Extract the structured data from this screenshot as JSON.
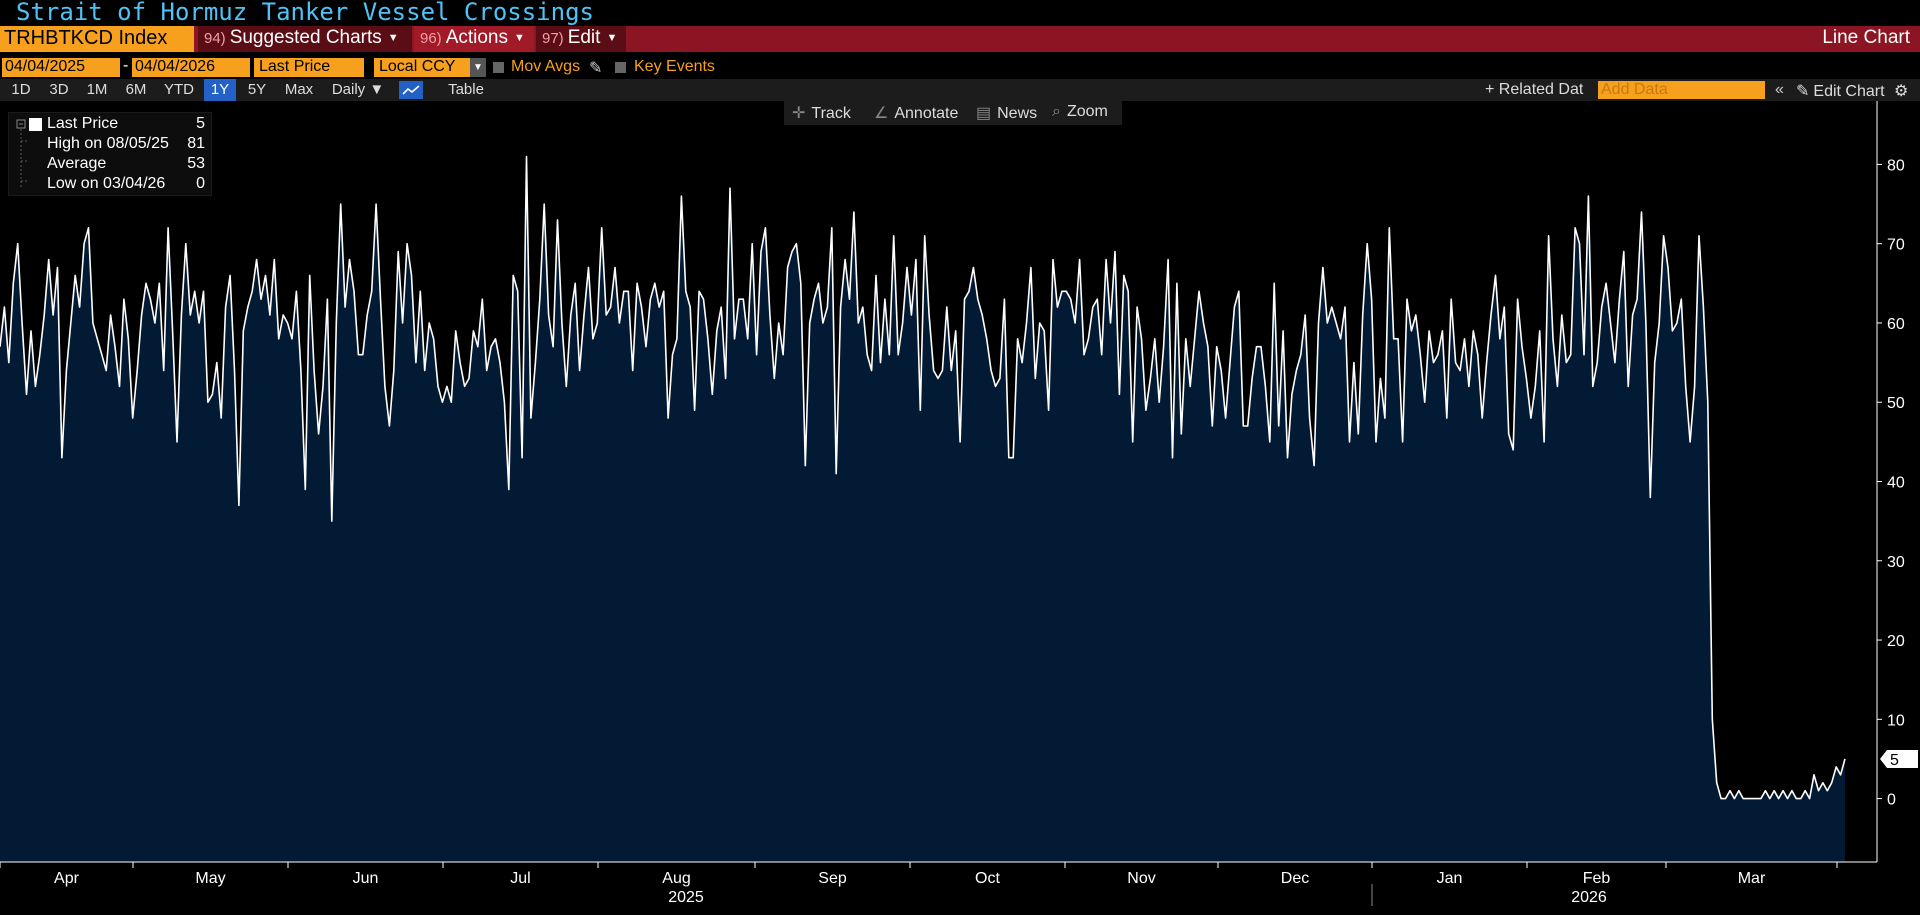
{
  "title": "Strait of Hormuz Tanker Vessel Crossings",
  "menu": {
    "ticker": "TRHBTKCD Index",
    "suggested": {
      "num": "94)",
      "label": "Suggested Charts"
    },
    "actions": {
      "num": "96)",
      "label": "Actions"
    },
    "edit": {
      "num": "97)",
      "label": "Edit"
    },
    "chart_type": "Line Chart"
  },
  "dates": {
    "start": "04/04/2025",
    "dash": "-",
    "end": "04/04/2026"
  },
  "field": "Last Price",
  "currency": "Local CCY",
  "mov_avgs": "Mov Avgs",
  "key_events": "Key Events",
  "ranges": [
    "1D",
    "3D",
    "1M",
    "6M",
    "YTD",
    "1Y",
    "5Y",
    "Max"
  ],
  "active_range": "1Y",
  "frequency": "Daily ▼",
  "table_label": "Table",
  "related_data": "+ Related Dat",
  "add_data_placeholder": "Add Data",
  "edit_chart": "Edit Chart",
  "tools": {
    "track": "Track",
    "annotate": "Annotate",
    "news": "News",
    "zoom": "Zoom"
  },
  "legend": {
    "last": {
      "label": "Last Price",
      "value": "5"
    },
    "high": {
      "label": "High on 08/05/25",
      "value": "81"
    },
    "average": {
      "label": "Average",
      "value": "53"
    },
    "low": {
      "label": "Low on 03/04/26",
      "value": "0"
    }
  },
  "colors": {
    "area": "#031a35",
    "line": "#ffffff",
    "accent": "#f6a01e",
    "menu": "#8b1522"
  },
  "chart_data": {
    "type": "area",
    "title": "Strait of Hormuz Tanker Vessel Crossings",
    "series": [
      {
        "name": "Last Price",
        "x_start": "2025-04-04",
        "x_end": "2026-04-04"
      }
    ],
    "values": [
      57,
      62,
      55,
      65,
      70,
      60,
      51,
      59,
      52,
      56,
      61,
      68,
      61,
      67,
      43,
      54,
      60,
      66,
      62,
      70,
      72,
      60,
      58,
      56,
      54,
      61,
      57,
      52,
      63,
      58,
      48,
      54,
      61,
      65,
      63,
      60,
      65,
      54,
      72,
      59,
      45,
      61,
      70,
      61,
      64,
      60,
      64,
      50,
      51,
      55,
      48,
      62,
      66,
      54,
      37,
      59,
      62,
      64,
      68,
      63,
      66,
      61,
      68,
      58,
      61,
      60,
      58,
      64,
      54,
      39,
      66,
      54,
      46,
      52,
      63,
      35,
      60,
      75,
      62,
      68,
      64,
      56,
      56,
      61,
      64,
      75,
      63,
      52,
      47,
      54,
      69,
      60,
      70,
      66,
      55,
      64,
      54,
      60,
      58,
      52,
      50,
      52,
      50,
      59,
      55,
      52,
      53,
      59,
      57,
      63,
      54,
      57,
      58,
      55,
      50,
      39,
      66,
      64,
      43,
      81,
      48,
      55,
      63,
      75,
      61,
      57,
      73,
      60,
      52,
      61,
      65,
      54,
      61,
      67,
      58,
      60,
      72,
      61,
      62,
      67,
      60,
      64,
      64,
      54,
      65,
      62,
      57,
      63,
      65,
      62,
      64,
      48,
      56,
      58,
      76,
      64,
      62,
      49,
      64,
      63,
      58,
      51,
      59,
      62,
      53,
      77,
      58,
      63,
      63,
      58,
      70,
      56,
      69,
      72,
      61,
      53,
      60,
      56,
      67,
      69,
      70,
      65,
      42,
      60,
      63,
      65,
      60,
      62,
      72,
      41,
      62,
      68,
      63,
      74,
      60,
      62,
      56,
      54,
      66,
      55,
      63,
      56,
      71,
      56,
      60,
      67,
      61,
      68,
      49,
      71,
      61,
      54,
      53,
      54,
      62,
      54,
      59,
      45,
      63,
      64,
      67,
      63,
      61,
      58,
      54,
      52,
      53,
      63,
      43,
      43,
      58,
      55,
      60,
      67,
      53,
      60,
      59,
      49,
      68,
      62,
      64,
      64,
      63,
      60,
      68,
      56,
      58,
      62,
      63,
      56,
      68,
      60,
      69,
      51,
      66,
      64,
      45,
      62,
      58,
      49,
      53,
      58,
      50,
      57,
      68,
      43,
      65,
      46,
      58,
      52,
      58,
      64,
      60,
      57,
      47,
      57,
      54,
      48,
      55,
      62,
      64,
      47,
      47,
      53,
      57,
      57,
      52,
      45,
      65,
      47,
      59,
      43,
      51,
      54,
      56,
      61,
      48,
      42,
      60,
      67,
      60,
      62,
      60,
      58,
      62,
      45,
      55,
      46,
      61,
      70,
      63,
      45,
      53,
      48,
      72,
      58,
      58,
      45,
      63,
      59,
      61,
      56,
      50,
      59,
      55,
      56,
      59,
      48,
      63,
      55,
      54,
      58,
      52,
      59,
      56,
      48,
      55,
      61,
      66,
      58,
      62,
      46,
      44,
      63,
      57,
      53,
      48,
      52,
      59,
      45,
      71,
      58,
      52,
      61,
      55,
      56,
      72,
      70,
      56,
      76,
      52,
      55,
      62,
      65,
      60,
      55,
      63,
      69,
      52,
      61,
      63,
      74,
      60,
      38,
      55,
      60,
      71,
      67,
      59,
      60,
      63,
      52,
      45,
      52,
      71,
      62,
      50,
      10,
      2,
      0,
      0,
      1,
      0,
      1,
      0,
      0,
      0,
      0,
      0,
      1,
      0,
      1,
      0,
      1,
      0,
      1,
      0,
      0,
      1,
      0,
      3,
      1,
      2,
      1,
      2,
      4,
      3,
      5
    ],
    "x_tick_labels": [
      "Apr",
      "May",
      "Jun",
      "Jul",
      "Aug",
      "Sep",
      "Oct",
      "Nov",
      "Dec",
      "Jan",
      "Feb",
      "Mar"
    ],
    "year_labels": [
      "2025",
      "2026"
    ],
    "y_ticks": [
      0,
      10,
      20,
      30,
      40,
      50,
      60,
      70,
      80
    ],
    "ylim": [
      -8,
      88
    ],
    "last_value": "5",
    "grid": false
  }
}
